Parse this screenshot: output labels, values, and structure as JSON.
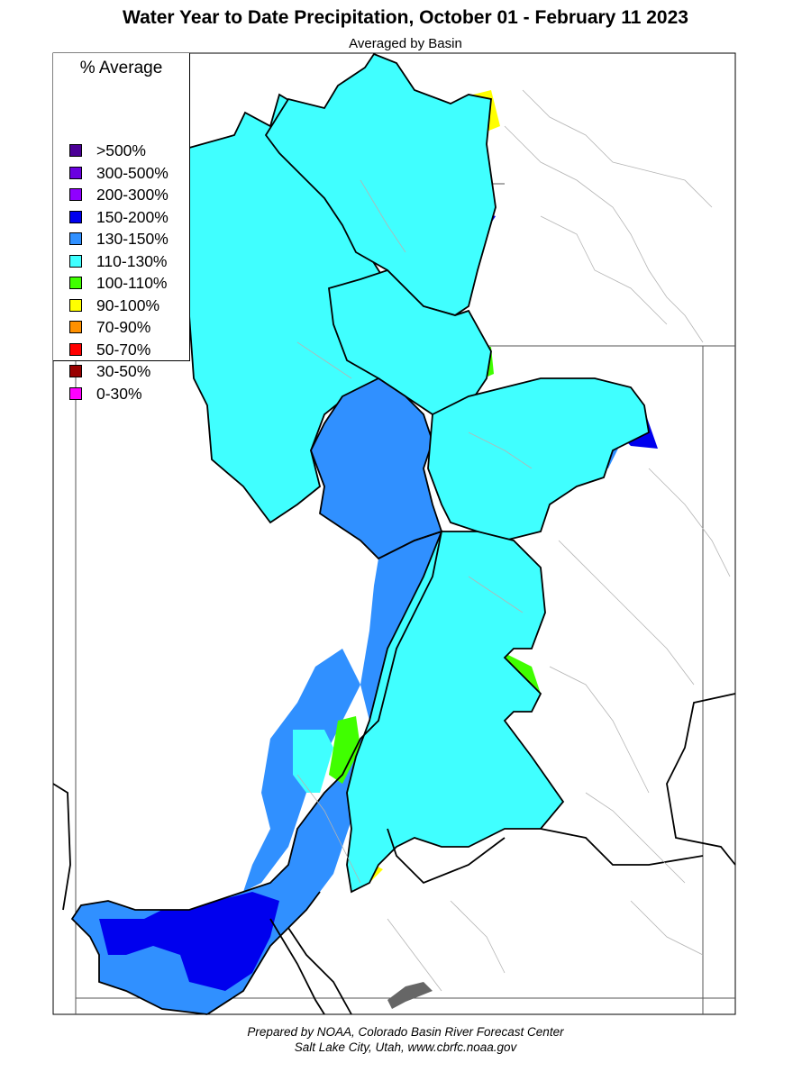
{
  "title": "Water Year to Date Precipitation, October 01  - February 11 2023",
  "subtitle": "Averaged by Basin",
  "legend": {
    "title": "% Average",
    "items": [
      {
        "label": ">500%",
        "color": "#4b0096"
      },
      {
        "label": "300-500%",
        "color": "#6a00e0"
      },
      {
        "label": "200-300%",
        "color": "#9000ff"
      },
      {
        "label": "150-200%",
        "color": "#0000ee"
      },
      {
        "label": "130-150%",
        "color": "#3090ff"
      },
      {
        "label": "110-130%",
        "color": "#40ffff"
      },
      {
        "label": "100-110%",
        "color": "#40ff00"
      },
      {
        "label": "90-100%",
        "color": "#ffff00"
      },
      {
        "label": "70-90%",
        "color": "#ff9000"
      },
      {
        "label": "50-70%",
        "color": "#ff0000"
      },
      {
        "label": "30-50%",
        "color": "#990000"
      },
      {
        "label": "0-30%",
        "color": "#ff00ff"
      }
    ]
  },
  "map_colors": {
    "no_data": "#666666",
    "outside": "#ffffff",
    "boundary": "#000000",
    "rivers": "#b4b4b4"
  },
  "footer": {
    "line1": "Prepared by NOAA, Colorado Basin River Forecast Center",
    "line2": "Salt Lake City, Utah, www.cbrfc.noaa.gov"
  }
}
